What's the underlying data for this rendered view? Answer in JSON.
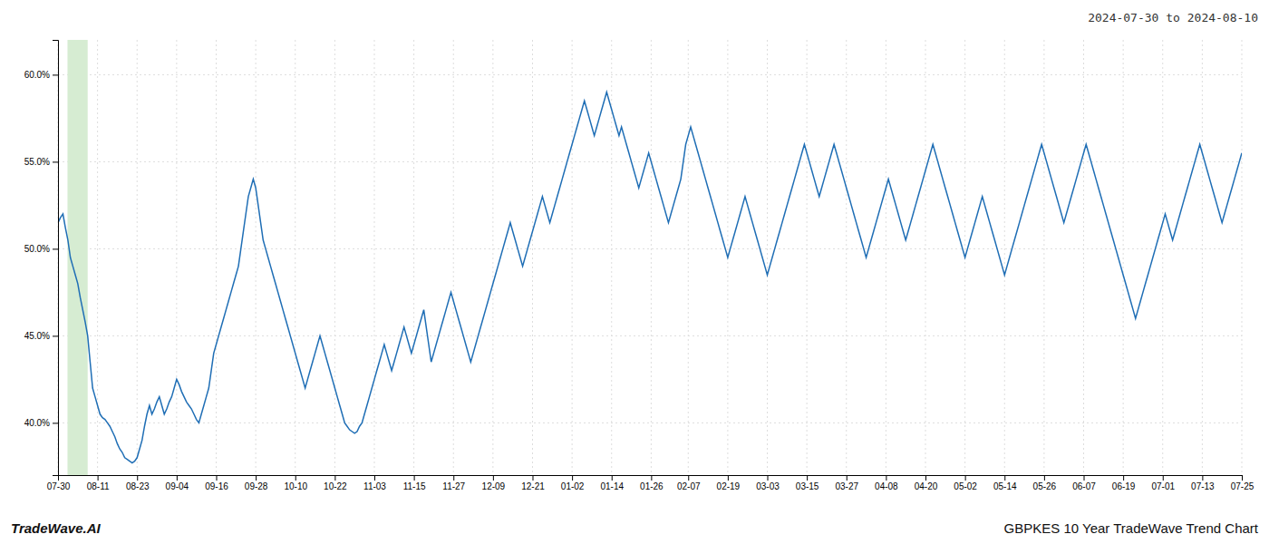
{
  "chart_data": {
    "type": "line",
    "title": "2024-07-30 to 2024-08-10",
    "annotations": [
      "TradeWave.AI",
      "GBPKES 10 Year TradeWave Trend Chart"
    ],
    "color": "#1f6eb5",
    "grid": true,
    "ylim": [
      37.0,
      62.0
    ],
    "yticks": [
      {
        "value": 40.0,
        "label": "40.0%"
      },
      {
        "value": 45.0,
        "label": "45.0%"
      },
      {
        "value": 50.0,
        "label": "50.0%"
      },
      {
        "value": 55.0,
        "label": "55.0%"
      },
      {
        "value": 60.0,
        "label": "60.0%"
      }
    ],
    "highlight": {
      "start": 3.84,
      "end": 12.0,
      "color": "#d6ecd2"
    },
    "categories": [
      "07-30",
      null,
      null,
      null,
      null,
      null,
      null,
      null,
      null,
      null,
      null,
      null,
      null,
      null,
      null,
      null,
      "08-11",
      null,
      null,
      null,
      null,
      null,
      null,
      null,
      null,
      null,
      null,
      null,
      null,
      null,
      null,
      null,
      "08-23",
      null,
      null,
      null,
      null,
      null,
      null,
      null,
      null,
      null,
      null,
      null,
      null,
      null,
      null,
      null,
      "09-04",
      null,
      null,
      null,
      null,
      null,
      null,
      null,
      null,
      null,
      null,
      null,
      null,
      null,
      null,
      null,
      "09-16",
      null,
      null,
      null,
      null,
      null,
      null,
      null,
      null,
      null,
      null,
      null,
      null,
      null,
      null,
      null,
      "09-28",
      null,
      null,
      null,
      null,
      null,
      null,
      null,
      null,
      null,
      null,
      null,
      null,
      null,
      null,
      null,
      "10-10",
      null,
      null,
      null,
      null,
      null,
      null,
      null,
      null,
      null,
      null,
      null,
      null,
      null,
      null,
      null,
      "10-22",
      null,
      null,
      null,
      null,
      null,
      null,
      null,
      null,
      null,
      null,
      null,
      null,
      null,
      null,
      null,
      "11-03",
      null,
      null,
      null,
      null,
      null,
      null,
      null,
      null,
      null,
      null,
      null,
      null,
      null,
      null,
      null,
      "11-15",
      null,
      null,
      null,
      null,
      null,
      null,
      null,
      null,
      null,
      null,
      null,
      null,
      null,
      null,
      null,
      "11-27",
      null,
      null,
      null,
      null,
      null,
      null,
      null,
      null,
      null,
      null,
      null,
      null,
      null,
      null,
      null,
      "12-09",
      null,
      null,
      null,
      null,
      null,
      null,
      null,
      null,
      null,
      null,
      null,
      null,
      null,
      null,
      null,
      "12-21",
      null,
      null,
      null,
      null,
      null,
      null,
      null,
      null,
      null,
      null,
      null,
      null,
      null,
      null,
      null,
      "01-02",
      null,
      null,
      null,
      null,
      null,
      null,
      null,
      null,
      null,
      null,
      null,
      null,
      null,
      null,
      null,
      "01-14",
      null,
      null,
      null,
      null,
      null,
      null,
      null,
      null,
      null,
      null,
      null,
      null,
      null,
      null,
      null,
      "01-26",
      null,
      null,
      null,
      null,
      null,
      null,
      null,
      null,
      null,
      null,
      null,
      null,
      null,
      null,
      "02-07",
      null,
      null,
      null,
      null,
      null,
      null,
      null,
      null,
      null,
      null,
      null,
      null,
      null,
      null,
      null,
      "02-19",
      null,
      null,
      null,
      null,
      null,
      null,
      null,
      null,
      null,
      null,
      null,
      null,
      null,
      null,
      null,
      "03-03",
      null,
      null,
      null,
      null,
      null,
      null,
      null,
      null,
      null,
      null,
      null,
      null,
      null,
      null,
      null,
      "03-15",
      null,
      null,
      null,
      null,
      null,
      null,
      null,
      null,
      null,
      null,
      null,
      null,
      null,
      null,
      null,
      "03-27",
      null,
      null,
      null,
      null,
      null,
      null,
      null,
      null,
      null,
      null,
      null,
      null,
      null,
      null,
      null,
      "04-08",
      null,
      null,
      null,
      null,
      null,
      null,
      null,
      null,
      null,
      null,
      null,
      null,
      null,
      null,
      null,
      "04-20",
      null,
      null,
      null,
      null,
      null,
      null,
      null,
      null,
      null,
      null,
      null,
      null,
      null,
      null,
      null,
      "05-02",
      null,
      null,
      null,
      null,
      null,
      null,
      null,
      null,
      null,
      null,
      null,
      null,
      null,
      null,
      null,
      "05-14",
      null,
      null,
      null,
      null,
      null,
      null,
      null,
      null,
      null,
      null,
      null,
      null,
      null,
      null,
      null,
      "05-26",
      null,
      null,
      null,
      null,
      null,
      null,
      null,
      null,
      null,
      null,
      null,
      null,
      null,
      null,
      null,
      "06-07",
      null,
      null,
      null,
      null,
      null,
      null,
      null,
      null,
      null,
      null,
      null,
      null,
      null,
      null,
      null,
      "06-19",
      null,
      null,
      null,
      null,
      null,
      null,
      null,
      null,
      null,
      null,
      null,
      null,
      null,
      null,
      null,
      "07-01",
      null,
      null,
      null,
      null,
      null,
      null,
      null,
      null,
      null,
      null,
      null,
      null,
      null,
      null,
      null,
      "07-13",
      null,
      null,
      null,
      null,
      null,
      null,
      null,
      null,
      null,
      null,
      null,
      null,
      null,
      null,
      null,
      "07-25"
    ],
    "values": [
      51.5,
      51.8,
      52.0,
      51.2,
      50.5,
      49.5,
      49.0,
      48.5,
      48.0,
      47.2,
      46.5,
      45.8,
      45.0,
      43.5,
      42.0,
      41.5,
      41.0,
      40.5,
      40.3,
      40.2,
      40.0,
      39.8,
      39.5,
      39.2,
      38.8,
      38.5,
      38.3,
      38.0,
      37.9,
      37.8,
      37.7,
      37.8,
      38.0,
      38.5,
      39.0,
      39.8,
      40.5,
      41.0,
      40.5,
      40.8,
      41.2,
      41.5,
      41.0,
      40.5,
      40.8,
      41.2,
      41.5,
      42.0,
      42.5,
      42.2,
      41.8,
      41.5,
      41.2,
      41.0,
      40.8,
      40.5,
      40.2,
      40.0,
      40.5,
      41.0,
      41.5,
      42.0,
      43.0,
      44.0,
      44.5,
      45.0,
      45.5,
      46.0,
      46.5,
      47.0,
      47.5,
      48.0,
      48.5,
      49.0,
      50.0,
      51.0,
      52.0,
      53.0,
      53.5,
      54.0,
      53.5,
      52.5,
      51.5,
      50.5,
      50.0,
      49.5,
      49.0,
      48.5,
      48.0,
      47.5,
      47.0,
      46.5,
      46.0,
      45.5,
      45.0,
      44.5,
      44.0,
      43.5,
      43.0,
      42.5,
      42.0,
      42.5,
      43.0,
      43.5,
      44.0,
      44.5,
      45.0,
      44.5,
      44.0,
      43.5,
      43.0,
      42.5,
      42.0,
      41.5,
      41.0,
      40.5,
      40.0,
      39.8,
      39.6,
      39.5,
      39.4,
      39.5,
      39.8,
      40.0,
      40.5,
      41.0,
      41.5,
      42.0,
      42.5,
      43.0,
      43.5,
      44.0,
      44.5,
      44.0,
      43.5,
      43.0,
      43.5,
      44.0,
      44.5,
      45.0,
      45.5,
      45.0,
      44.5,
      44.0,
      44.5,
      45.0,
      45.5,
      46.0,
      46.5,
      45.5,
      44.5,
      43.5,
      44.0,
      44.5,
      45.0,
      45.5,
      46.0,
      46.5,
      47.0,
      47.5,
      47.0,
      46.5,
      46.0,
      45.5,
      45.0,
      44.5,
      44.0,
      43.5,
      44.0,
      44.5,
      45.0,
      45.5,
      46.0,
      46.5,
      47.0,
      47.5,
      48.0,
      48.5,
      49.0,
      49.5,
      50.0,
      50.5,
      51.0,
      51.5,
      51.0,
      50.5,
      50.0,
      49.5,
      49.0,
      49.5,
      50.0,
      50.5,
      51.0,
      51.5,
      52.0,
      52.5,
      53.0,
      52.5,
      52.0,
      51.5,
      52.0,
      52.5,
      53.0,
      53.5,
      54.0,
      54.5,
      55.0,
      55.5,
      56.0,
      56.5,
      57.0,
      57.5,
      58.0,
      58.5,
      58.0,
      57.5,
      57.0,
      56.5,
      57.0,
      57.5,
      58.0,
      58.5,
      59.0,
      58.5,
      58.0,
      57.5,
      57.0,
      56.5,
      57.0,
      56.5,
      56.0,
      55.5,
      55.0,
      54.5,
      54.0,
      53.5,
      54.0,
      54.5,
      55.0,
      55.5,
      55.0,
      54.5,
      54.0,
      53.5,
      53.0,
      52.5,
      52.0,
      51.5,
      52.0,
      52.5,
      53.0,
      53.5,
      54.0,
      55.0,
      56.0,
      56.5,
      57.0,
      56.5,
      56.0,
      55.5,
      55.0,
      54.5,
      54.0,
      53.5,
      53.0,
      52.5,
      52.0,
      51.5,
      51.0,
      50.5,
      50.0,
      49.5,
      50.0,
      50.5,
      51.0,
      51.5,
      52.0,
      52.5,
      53.0,
      52.5,
      52.0,
      51.5,
      51.0,
      50.5,
      50.0,
      49.5,
      49.0,
      48.5,
      49.0,
      49.5,
      50.0,
      50.5,
      51.0,
      51.5,
      52.0,
      52.5,
      53.0,
      53.5,
      54.0,
      54.5,
      55.0,
      55.5,
      56.0,
      55.5,
      55.0,
      54.5,
      54.0,
      53.5,
      53.0,
      53.5,
      54.0,
      54.5,
      55.0,
      55.5,
      56.0,
      55.5,
      55.0,
      54.5,
      54.0,
      53.5,
      53.0,
      52.5,
      52.0,
      51.5,
      51.0,
      50.5,
      50.0,
      49.5,
      50.0,
      50.5,
      51.0,
      51.5,
      52.0,
      52.5,
      53.0,
      53.5,
      54.0,
      53.5,
      53.0,
      52.5,
      52.0,
      51.5,
      51.0,
      50.5,
      51.0,
      51.5,
      52.0,
      52.5,
      53.0,
      53.5,
      54.0,
      54.5,
      55.0,
      55.5,
      56.0,
      55.5,
      55.0,
      54.5,
      54.0,
      53.5,
      53.0,
      52.5,
      52.0,
      51.5,
      51.0,
      50.5,
      50.0,
      49.5,
      50.0,
      50.5,
      51.0,
      51.5,
      52.0,
      52.5,
      53.0,
      52.5,
      52.0,
      51.5,
      51.0,
      50.5,
      50.0,
      49.5,
      49.0,
      48.5,
      49.0,
      49.5,
      50.0,
      50.5,
      51.0,
      51.5,
      52.0,
      52.5,
      53.0,
      53.5,
      54.0,
      54.5,
      55.0,
      55.5,
      56.0,
      55.5,
      55.0,
      54.5,
      54.0,
      53.5,
      53.0,
      52.5,
      52.0,
      51.5,
      52.0,
      52.5,
      53.0,
      53.5,
      54.0,
      54.5,
      55.0,
      55.5,
      56.0,
      55.5,
      55.0,
      54.5,
      54.0,
      53.5,
      53.0,
      52.5,
      52.0,
      51.5,
      51.0,
      50.5,
      50.0,
      49.5,
      49.0,
      48.5,
      48.0,
      47.5,
      47.0,
      46.5,
      46.0,
      46.5,
      47.0,
      47.5,
      48.0,
      48.5,
      49.0,
      49.5,
      50.0,
      50.5,
      51.0,
      51.5,
      52.0,
      51.5,
      51.0,
      50.5,
      51.0,
      51.5,
      52.0,
      52.5,
      53.0,
      53.5,
      54.0,
      54.5,
      55.0,
      55.5,
      56.0,
      55.5,
      55.0,
      54.5,
      54.0,
      53.5,
      53.0,
      52.5,
      52.0,
      51.5,
      52.0,
      52.5,
      53.0,
      53.5,
      54.0,
      54.5,
      55.0,
      55.5
    ]
  }
}
